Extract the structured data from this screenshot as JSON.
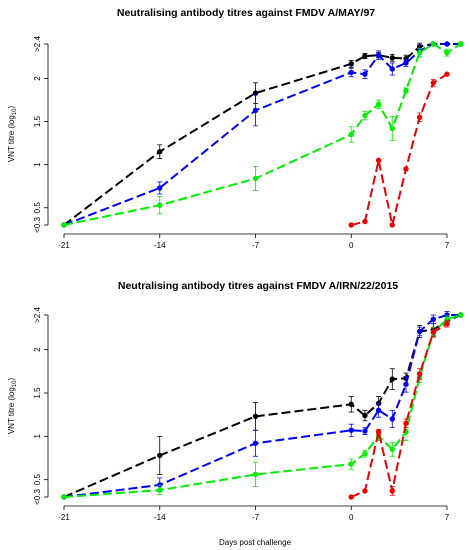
{
  "chart_data": [
    {
      "type": "line",
      "title": "Neutralising antibody titres against FMDV A/MAY/97",
      "xlabel": "",
      "ylabel": "VNT titre (log",
      "ylabel_subscript": "10",
      "ylabel_close": ")",
      "x_ticks": [
        -21,
        -14,
        -7,
        0,
        7
      ],
      "y_ticks": [
        0.3,
        0.5,
        1,
        1.5,
        2,
        2.4
      ],
      "y_tick_labels": [
        "<0.3",
        "0.5",
        "1",
        "1.5",
        "2",
        ">2.4"
      ],
      "xlim": [
        -21,
        7
      ],
      "ylim": [
        0.3,
        2.4
      ],
      "series": [
        {
          "color": "#000000",
          "x": [
            -21,
            -14,
            -7,
            0,
            1,
            2,
            3,
            4,
            5,
            6,
            7,
            8
          ],
          "y": [
            0.3,
            1.15,
            1.83,
            2.17,
            2.26,
            2.27,
            2.24,
            2.23,
            2.37,
            2.4,
            2.4,
            2.4
          ],
          "err": [
            0,
            0.08,
            0.12,
            0.04,
            0.03,
            0.03,
            0.04,
            0.04,
            0.04,
            0,
            0,
            0
          ]
        },
        {
          "color": "#0000ff",
          "x": [
            -21,
            -14,
            -7,
            0,
            1,
            2,
            3,
            4,
            5,
            6,
            7,
            8
          ],
          "y": [
            0.3,
            0.73,
            1.63,
            2.07,
            2.05,
            2.27,
            2.11,
            2.18,
            2.32,
            2.4,
            2.4,
            2.4
          ],
          "err": [
            0,
            0.07,
            0.18,
            0.05,
            0.05,
            0.05,
            0.07,
            0.04,
            0.07,
            0,
            0,
            0
          ]
        },
        {
          "color": "#00ee00",
          "x": [
            -21,
            -14,
            -7,
            0,
            1,
            2,
            3,
            4,
            5,
            6,
            7,
            8
          ],
          "y": [
            0.3,
            0.53,
            0.84,
            1.35,
            1.57,
            1.7,
            1.42,
            1.86,
            2.3,
            2.4,
            2.3,
            2.4
          ],
          "err": [
            0,
            0.1,
            0.14,
            0.09,
            0.05,
            0.05,
            0.14,
            0.03,
            0.05,
            0,
            0.04,
            0
          ]
        },
        {
          "color": "#ee0000",
          "x": [
            0,
            1,
            2,
            3,
            4,
            5,
            6,
            7
          ],
          "y": [
            0.3,
            0.34,
            1.05,
            0.3,
            0.95,
            1.55,
            1.95,
            2.05
          ],
          "err": [
            0,
            0,
            0,
            0,
            0,
            0.05,
            0.04,
            0
          ]
        }
      ]
    },
    {
      "type": "line",
      "title": "Neutralising antibody titres against FMDV A/IRN/22/2015",
      "xlabel": "Days post challenge",
      "ylabel": "VNT titre (log",
      "ylabel_subscript": "10",
      "ylabel_close": ")",
      "x_ticks": [
        -21,
        -14,
        -7,
        0,
        7
      ],
      "y_ticks": [
        0.3,
        0.5,
        1,
        1.5,
        2,
        2.4
      ],
      "y_tick_labels": [
        "<0.3",
        "0.5",
        "1",
        "1.5",
        "2",
        ">2.4"
      ],
      "xlim": [
        -21,
        7
      ],
      "ylim": [
        0.3,
        2.4
      ],
      "series": [
        {
          "color": "#000000",
          "x": [
            -21,
            -14,
            -7,
            0,
            1,
            2,
            3,
            4,
            5,
            6,
            7,
            8
          ],
          "y": [
            0.3,
            0.78,
            1.23,
            1.37,
            1.24,
            1.38,
            1.66,
            1.67,
            2.21,
            2.23,
            2.33,
            2.4
          ],
          "err": [
            0,
            0.22,
            0.16,
            0.09,
            0.06,
            0.08,
            0.12,
            0.06,
            0.07,
            0.07,
            0.05,
            0
          ]
        },
        {
          "color": "#0000ff",
          "x": [
            -21,
            -14,
            -7,
            0,
            1,
            2,
            3,
            4,
            5,
            6,
            7,
            8
          ],
          "y": [
            0.3,
            0.44,
            0.92,
            1.07,
            1.06,
            1.3,
            1.2,
            1.6,
            2.21,
            2.35,
            2.4,
            2.4
          ],
          "err": [
            0,
            0.08,
            0.15,
            0.07,
            0.04,
            0.08,
            0.1,
            0.09,
            0.05,
            0.05,
            0.04,
            0
          ]
        },
        {
          "color": "#00ee00",
          "x": [
            -21,
            -14,
            -7,
            0,
            1,
            2,
            3,
            4,
            5,
            6,
            7,
            8
          ],
          "y": [
            0.3,
            0.38,
            0.56,
            0.68,
            0.8,
            1.0,
            0.85,
            1.05,
            1.68,
            2.2,
            2.35,
            2.4
          ],
          "err": [
            0,
            0.05,
            0.14,
            0.06,
            0.04,
            0.05,
            0.08,
            0.1,
            0.06,
            0.06,
            0.04,
            0
          ]
        },
        {
          "color": "#ee0000",
          "x": [
            0,
            1,
            2,
            3,
            4,
            5,
            6,
            7
          ],
          "y": [
            0.3,
            0.37,
            1.05,
            0.37,
            1.15,
            1.72,
            2.2,
            2.3
          ],
          "err": [
            0,
            0,
            0.03,
            0.05,
            0.05,
            0.06,
            0.05,
            0.04
          ]
        }
      ]
    }
  ]
}
